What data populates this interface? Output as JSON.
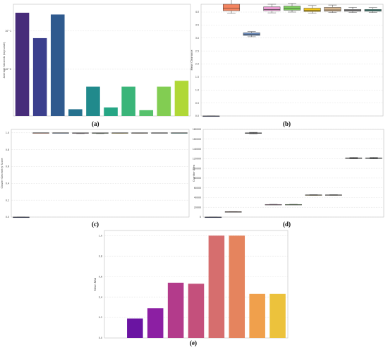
{
  "captions": [
    "(a)",
    "(b)",
    "(c)",
    "(d)",
    "(e)"
  ],
  "chart_data": [
    {
      "id": "a",
      "type": "bar",
      "ylabel": "Average Seconds (log scale)",
      "yscale": "log",
      "ylim": [
        0.06,
        50
      ],
      "ytick_labels": [
        "10^1",
        "10^0"
      ],
      "yticks": [
        10,
        1
      ],
      "grid": true,
      "categories": [
        "",
        "",
        "",
        "",
        "",
        "",
        "",
        "",
        "",
        ""
      ],
      "values": [
        30,
        6.5,
        27,
        0.09,
        0.35,
        0.1,
        0.35,
        0.085,
        0.35,
        0.5
      ],
      "colors": [
        "#472c7a",
        "#3b3f8d",
        "#2f5a8e",
        "#26728e",
        "#218a8c",
        "#26a685",
        "#3ab579",
        "#57c16c",
        "#82cd52",
        "#b0d836"
      ]
    },
    {
      "id": "b",
      "type": "box",
      "ylabel": "Mean Clearance",
      "ylim": [
        0,
        4.3
      ],
      "yticks": [
        0.0,
        0.5,
        1.0,
        1.5,
        2.0,
        2.5,
        3.0,
        3.5,
        4.0
      ],
      "ytick_labels": [
        "0.0",
        "0.5",
        "1.0",
        "1.5",
        "2.0",
        "2.5",
        "3.0",
        "3.5",
        "4.0"
      ],
      "grid": true,
      "boxes": [
        {
          "min": 0.0,
          "q1": 0.0,
          "med": 0.0,
          "q3": 0.0,
          "max": 0.0,
          "color": "#3b4cc0"
        },
        {
          "min": 3.95,
          "q1": 4.05,
          "med": 4.15,
          "q3": 4.3,
          "max": 4.55,
          "color": "#f4845f"
        },
        {
          "min": 3.05,
          "q1": 3.1,
          "med": 3.15,
          "q3": 3.2,
          "max": 3.25,
          "color": "#6c8ebf"
        },
        {
          "min": 3.97,
          "q1": 4.05,
          "med": 4.1,
          "q3": 4.2,
          "max": 4.3,
          "color": "#e99cd2"
        },
        {
          "min": 4.0,
          "q1": 4.07,
          "med": 4.13,
          "q3": 4.23,
          "max": 4.33,
          "color": "#7dcc5e"
        },
        {
          "min": 3.95,
          "q1": 4.02,
          "med": 4.07,
          "q3": 4.15,
          "max": 4.25,
          "color": "#f0c419"
        },
        {
          "min": 3.98,
          "q1": 4.03,
          "med": 4.08,
          "q3": 4.18,
          "max": 4.27,
          "color": "#d8b890"
        },
        {
          "min": 3.98,
          "q1": 4.03,
          "med": 4.06,
          "q3": 4.1,
          "max": 4.18,
          "color": "#9e9e9e"
        },
        {
          "min": 3.98,
          "q1": 4.03,
          "med": 4.06,
          "q3": 4.1,
          "max": 4.17,
          "color": "#4a9a8c"
        }
      ]
    },
    {
      "id": "c",
      "type": "box",
      "ylabel": "Cluster Geometry Score",
      "ylim": [
        0,
        1.04
      ],
      "yticks": [
        0.0,
        0.2,
        0.4,
        0.6,
        0.8,
        1.0
      ],
      "ytick_labels": [
        "0.0",
        "0.2",
        "0.4",
        "0.6",
        "0.8",
        "1.0"
      ],
      "grid": true,
      "boxes": [
        {
          "min": 0.0,
          "q1": 0.0,
          "med": 0.0,
          "q3": 0.0,
          "max": 0.0,
          "color": "#3b4cc0"
        },
        {
          "min": 1.0,
          "q1": 1.0,
          "med": 1.0,
          "q3": 1.0,
          "max": 1.0,
          "color": "#f4845f"
        },
        {
          "min": 1.0,
          "q1": 1.0,
          "med": 1.0,
          "q3": 1.0,
          "max": 1.0,
          "color": "#6c8ebf"
        },
        {
          "min": 0.99,
          "q1": 0.995,
          "med": 0.997,
          "q3": 1.0,
          "max": 1.0,
          "color": "#e99cd2"
        },
        {
          "min": 0.99,
          "q1": 0.995,
          "med": 0.997,
          "q3": 1.0,
          "max": 1.0,
          "color": "#7dcc5e"
        },
        {
          "min": 0.995,
          "q1": 0.998,
          "med": 0.999,
          "q3": 1.0,
          "max": 1.0,
          "color": "#f0c419"
        },
        {
          "min": 0.995,
          "q1": 0.998,
          "med": 0.999,
          "q3": 1.0,
          "max": 1.0,
          "color": "#d8b890"
        },
        {
          "min": 0.998,
          "q1": 1.0,
          "med": 1.0,
          "q3": 1.0,
          "max": 1.0,
          "color": "#9e9e9e"
        },
        {
          "min": 0.998,
          "q1": 1.0,
          "med": 1.0,
          "q3": 1.0,
          "max": 1.0,
          "color": "#4a9a8c"
        }
      ]
    },
    {
      "id": "d",
      "type": "box",
      "ylabel": "Corridor Area",
      "ylim": [
        0,
        180000
      ],
      "yticks": [
        0,
        20000,
        40000,
        60000,
        80000,
        100000,
        120000,
        140000,
        160000,
        180000
      ],
      "ytick_labels": [
        "0",
        "20000",
        "40000",
        "60000",
        "80000",
        "100000",
        "120000",
        "140000",
        "160000",
        "180000"
      ],
      "grid": true,
      "boxes": [
        {
          "min": 0,
          "q1": 0,
          "med": 0,
          "q3": 0,
          "max": 0,
          "color": "#3b4cc0"
        },
        {
          "min": 10300,
          "q1": 10600,
          "med": 10800,
          "q3": 11000,
          "max": 11300,
          "color": "#f4845f"
        },
        {
          "min": 171000,
          "q1": 172000,
          "med": 172500,
          "q3": 173000,
          "max": 174000,
          "color": "#6c8ebf"
        },
        {
          "min": 25000,
          "q1": 25400,
          "med": 25600,
          "q3": 25800,
          "max": 26200,
          "color": "#e99cd2"
        },
        {
          "min": 25000,
          "q1": 25400,
          "med": 25600,
          "q3": 25800,
          "max": 26200,
          "color": "#7dcc5e"
        },
        {
          "min": 44500,
          "q1": 45000,
          "med": 45300,
          "q3": 45600,
          "max": 46000,
          "color": "#f0c419"
        },
        {
          "min": 44500,
          "q1": 45000,
          "med": 45300,
          "q3": 45600,
          "max": 46000,
          "color": "#d8b890"
        },
        {
          "min": 119500,
          "q1": 120500,
          "med": 121000,
          "q3": 121500,
          "max": 122500,
          "color": "#9e9e9e"
        },
        {
          "min": 119500,
          "q1": 120500,
          "med": 121000,
          "q3": 121500,
          "max": 122500,
          "color": "#4a9a8c"
        }
      ]
    },
    {
      "id": "e",
      "type": "bar",
      "ylabel": "Mean NSU",
      "ylim": [
        0,
        1.05
      ],
      "yticks": [
        0.0,
        0.2,
        0.4,
        0.6,
        0.8,
        1.0
      ],
      "ytick_labels": [
        "0.0",
        "0.2",
        "0.4",
        "0.6",
        "0.8",
        "1.0"
      ],
      "grid": true,
      "categories": [
        "",
        "",
        "",
        "",
        "",
        "",
        "",
        "",
        ""
      ],
      "values": [
        0.0,
        0.19,
        0.29,
        0.54,
        0.53,
        1.0,
        1.0,
        0.43,
        0.43
      ],
      "colors": [
        "#3b1b8f",
        "#6a14a2",
        "#8c1fa3",
        "#b33b8b",
        "#c4507c",
        "#d66e6e",
        "#e5845e",
        "#f0a04c",
        "#ecc23c"
      ]
    }
  ]
}
